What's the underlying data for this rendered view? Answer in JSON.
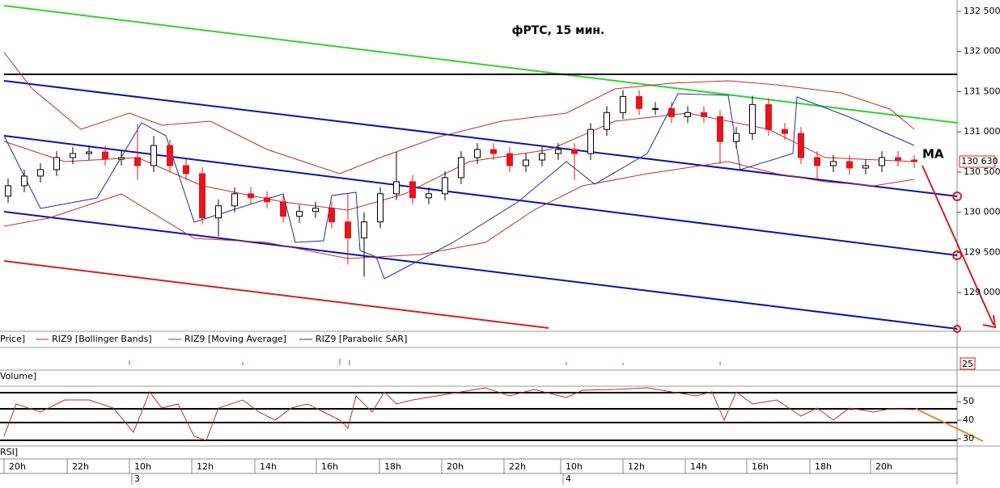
{
  "chart_data": {
    "type": "candlestick",
    "title": "фРТС,  15 мин.",
    "annotation": "MA",
    "last_price": {
      "value": 130630,
      "label": "130 630"
    },
    "ylim": [
      128540,
      132640
    ],
    "yticks": [
      {
        "value": 129000,
        "label": "129 000"
      },
      {
        "value": 129500,
        "label": "129 500"
      },
      {
        "value": 130000,
        "label": "130 000"
      },
      {
        "value": 130500,
        "label": "130 500"
      },
      {
        "value": 131000,
        "label": "131 000"
      },
      {
        "value": 131500,
        "label": "131 500"
      },
      {
        "value": 132000,
        "label": "132 000"
      },
      {
        "value": 132500,
        "label": "132 500"
      }
    ],
    "up_color": "#ffffff",
    "down_color": "#e8141c",
    "ohlc": [
      [
        130200,
        130420,
        130120,
        130330
      ],
      [
        130330,
        130530,
        130250,
        130450
      ],
      [
        130450,
        130610,
        130370,
        130530
      ],
      [
        130530,
        130760,
        130450,
        130680
      ],
      [
        130680,
        130810,
        130600,
        130730
      ],
      [
        130730,
        130830,
        130650,
        130750
      ],
      [
        130750,
        130830,
        130580,
        130660
      ],
      [
        130660,
        130760,
        130580,
        130680
      ],
      [
        130680,
        131100,
        130400,
        130580
      ],
      [
        130580,
        130950,
        130500,
        130830
      ],
      [
        130830,
        130900,
        130500,
        130580
      ],
      [
        130580,
        130660,
        130400,
        130480
      ],
      [
        130480,
        130560,
        129850,
        129930
      ],
      [
        129930,
        130160,
        129700,
        130080
      ],
      [
        130080,
        130310,
        130000,
        130230
      ],
      [
        130230,
        130310,
        130100,
        130180
      ],
      [
        130180,
        130260,
        130050,
        130130
      ],
      [
        130130,
        130210,
        129870,
        129950
      ],
      [
        129950,
        130090,
        129870,
        130010
      ],
      [
        130010,
        130130,
        129930,
        130050
      ],
      [
        130050,
        130130,
        129800,
        129880
      ],
      [
        129880,
        130240,
        129350,
        129680
      ],
      [
        129680,
        130000,
        129200,
        129880
      ],
      [
        129880,
        130310,
        129800,
        130230
      ],
      [
        130230,
        130750,
        130150,
        130380
      ],
      [
        130380,
        130460,
        130100,
        130180
      ],
      [
        130180,
        130310,
        130100,
        130230
      ],
      [
        130230,
        130510,
        130150,
        130430
      ],
      [
        130430,
        130760,
        130350,
        130680
      ],
      [
        130680,
        130860,
        130600,
        130780
      ],
      [
        130780,
        130860,
        130650,
        130730
      ],
      [
        130730,
        130810,
        130500,
        130580
      ],
      [
        130580,
        130730,
        130500,
        130650
      ],
      [
        130650,
        130810,
        130570,
        130730
      ],
      [
        130730,
        130860,
        130650,
        130780
      ],
      [
        130780,
        130860,
        130400,
        130730
      ],
      [
        130730,
        131110,
        130650,
        131030
      ],
      [
        131030,
        131320,
        130950,
        131240
      ],
      [
        131240,
        131520,
        131160,
        131440
      ],
      [
        131440,
        131520,
        131210,
        131290
      ],
      [
        131290,
        131370,
        131210,
        131290
      ],
      [
        131290,
        131370,
        131110,
        131190
      ],
      [
        131190,
        131320,
        131110,
        131240
      ],
      [
        131240,
        131320,
        131110,
        131190
      ],
      [
        131190,
        131270,
        130600,
        130880
      ],
      [
        130880,
        131060,
        130800,
        130980
      ],
      [
        130980,
        131450,
        130900,
        131340
      ],
      [
        131340,
        131420,
        130950,
        131030
      ],
      [
        131030,
        131110,
        130900,
        130980
      ],
      [
        130980,
        131060,
        130600,
        130680
      ],
      [
        130680,
        130760,
        130400,
        130580
      ],
      [
        130580,
        130710,
        130500,
        130630
      ],
      [
        130630,
        130710,
        130470,
        130550
      ],
      [
        130550,
        130660,
        130470,
        130580
      ],
      [
        130580,
        130760,
        130500,
        130680
      ],
      [
        130680,
        130760,
        130570,
        130650
      ],
      [
        130650,
        130710,
        130550,
        130630
      ]
    ],
    "legend": [
      "Price]",
      "RIZ9 [Bollinger Bands]",
      "RIZ9 [Moving Average]",
      "RIZ9 [Parabolic SAR]"
    ],
    "volume_panel": {
      "label": "Volume]",
      "tick": 25
    },
    "rsi_panel": {
      "label": "RSI]",
      "ylim": [
        27,
        57
      ],
      "yticks": [
        30,
        40,
        50
      ]
    },
    "time_labels": [
      "20h",
      "22h",
      "10h",
      "12h",
      "14h",
      "16h",
      "18h",
      "20h",
      "22h",
      "10h",
      "12h",
      "14h",
      "16h",
      "18h",
      "20h"
    ],
    "date_labels": [
      "3",
      "4"
    ]
  }
}
